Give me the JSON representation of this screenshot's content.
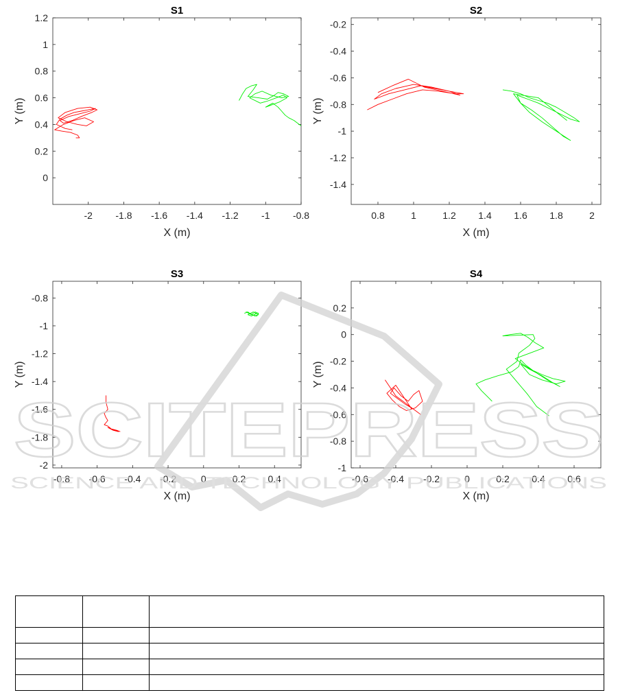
{
  "chart_data": [
    {
      "type": "line",
      "title": "S1",
      "xlabel": "X (m)",
      "ylabel": "Y (m)",
      "xlim": [
        -2.2,
        -0.8
      ],
      "ylim": [
        -0.2,
        1.2
      ],
      "xticks": [
        -2,
        -1.8,
        -1.6,
        -1.4,
        -1.2,
        -1,
        -0.8
      ],
      "yticks": [
        0,
        0.2,
        0.4,
        0.6,
        0.8,
        1,
        1.2
      ],
      "grid": false,
      "series": [
        {
          "color": "#ff0000",
          "x": [
            -2.09,
            -2.13,
            -2.18,
            -2.16,
            -2.12,
            -2.08,
            -2.04,
            -2.0,
            -1.96,
            -1.99,
            -2.05,
            -2.11,
            -2.16,
            -2.14,
            -2.09,
            -2.04,
            -1.98,
            -1.95,
            -1.99,
            -2.06,
            -2.13,
            -2.17,
            -2.12,
            -2.06,
            -2.01,
            -1.97,
            -2.02,
            -2.08,
            -2.14,
            -2.19,
            -2.15,
            -2.1,
            -2.06,
            -2.05,
            -2.07
          ],
          "y": [
            0.36,
            0.37,
            0.4,
            0.44,
            0.47,
            0.49,
            0.5,
            0.51,
            0.52,
            0.5,
            0.48,
            0.46,
            0.43,
            0.41,
            0.43,
            0.46,
            0.49,
            0.51,
            0.53,
            0.52,
            0.49,
            0.45,
            0.42,
            0.4,
            0.39,
            0.42,
            0.45,
            0.43,
            0.4,
            0.36,
            0.35,
            0.34,
            0.32,
            0.3,
            0.3
          ]
        },
        {
          "color": "#00ee00",
          "x": [
            -1.15,
            -1.13,
            -1.11,
            -1.08,
            -1.05,
            -1.07,
            -1.1,
            -1.04,
            -0.99,
            -0.95,
            -0.93,
            -0.9,
            -0.87,
            -0.91,
            -0.97,
            -1.02,
            -1.06,
            -1.09,
            -1.03,
            -0.98,
            -0.94,
            -0.9,
            -0.88,
            -0.92,
            -0.96,
            -1.0,
            -0.96,
            -0.93,
            -0.91,
            -0.89,
            -0.87,
            -0.84,
            -0.82,
            -0.8
          ],
          "y": [
            0.58,
            0.63,
            0.67,
            0.69,
            0.7,
            0.66,
            0.61,
            0.6,
            0.59,
            0.62,
            0.64,
            0.63,
            0.61,
            0.6,
            0.62,
            0.65,
            0.63,
            0.6,
            0.56,
            0.58,
            0.6,
            0.62,
            0.6,
            0.57,
            0.55,
            0.53,
            0.56,
            0.53,
            0.5,
            0.47,
            0.45,
            0.43,
            0.41,
            0.39
          ]
        }
      ]
    },
    {
      "type": "line",
      "title": "S2",
      "xlabel": "X (m)",
      "ylabel": "Y (m)",
      "xlim": [
        0.65,
        2.05
      ],
      "ylim": [
        -1.55,
        -0.15
      ],
      "xticks": [
        0.8,
        1,
        1.2,
        1.4,
        1.6,
        1.8,
        2
      ],
      "yticks": [
        -1.4,
        -1.2,
        -1,
        -0.8,
        -0.6,
        -0.4,
        -0.2
      ],
      "grid": false,
      "series": [
        {
          "color": "#ff0000",
          "x": [
            0.74,
            0.8,
            0.88,
            0.96,
            1.05,
            1.14,
            1.23,
            1.28,
            1.2,
            1.1,
            1.0,
            0.9,
            0.82,
            0.78,
            0.86,
            0.95,
            1.04,
            1.12,
            1.2,
            1.26,
            1.16,
            1.06,
            0.97,
            0.88,
            0.8
          ],
          "y": [
            -0.84,
            -0.8,
            -0.76,
            -0.72,
            -0.69,
            -0.7,
            -0.72,
            -0.72,
            -0.7,
            -0.67,
            -0.65,
            -0.68,
            -0.72,
            -0.76,
            -0.72,
            -0.69,
            -0.66,
            -0.68,
            -0.7,
            -0.73,
            -0.7,
            -0.67,
            -0.61,
            -0.66,
            -0.71
          ]
        },
        {
          "color": "#00ee00",
          "x": [
            1.5,
            1.55,
            1.6,
            1.65,
            1.7,
            1.75,
            1.8,
            1.85,
            1.9,
            1.93,
            1.88,
            1.82,
            1.76,
            1.7,
            1.64,
            1.58,
            1.6,
            1.66,
            1.72,
            1.78,
            1.84,
            1.88,
            1.8,
            1.72,
            1.65,
            1.6,
            1.56,
            1.7,
            1.86
          ],
          "y": [
            -0.69,
            -0.7,
            -0.72,
            -0.75,
            -0.77,
            -0.79,
            -0.82,
            -0.86,
            -0.9,
            -0.93,
            -0.91,
            -0.87,
            -0.83,
            -0.79,
            -0.76,
            -0.73,
            -0.79,
            -0.84,
            -0.9,
            -0.97,
            -1.04,
            -1.07,
            -1.0,
            -0.93,
            -0.86,
            -0.79,
            -0.72,
            -0.75,
            -0.92
          ]
        }
      ]
    },
    {
      "type": "line",
      "title": "S3",
      "xlabel": "X (m)",
      "ylabel": "Y (m)",
      "xlim": [
        -0.85,
        0.55
      ],
      "ylim": [
        -2.02,
        -0.68
      ],
      "xticks": [
        -0.8,
        -0.6,
        -0.4,
        -0.2,
        0,
        0.2,
        0.4
      ],
      "yticks": [
        -2,
        -1.8,
        -1.6,
        -1.4,
        -1.2,
        -1,
        -0.8
      ],
      "grid": false,
      "series": [
        {
          "color": "#ff0000",
          "x": [
            -0.55,
            -0.55,
            -0.54,
            -0.56,
            -0.55,
            -0.54,
            -0.56,
            -0.54,
            -0.52,
            -0.5,
            -0.48,
            -0.51,
            -0.54,
            -0.52,
            -0.49,
            -0.47
          ],
          "y": [
            -1.5,
            -1.55,
            -1.6,
            -1.63,
            -1.66,
            -1.68,
            -1.71,
            -1.72,
            -1.74,
            -1.75,
            -1.76,
            -1.75,
            -1.73,
            -1.74,
            -1.75,
            -1.76
          ]
        },
        {
          "color": "#00ee00",
          "x": [
            0.23,
            0.25,
            0.27,
            0.29,
            0.31,
            0.3,
            0.27,
            0.24,
            0.26,
            0.29,
            0.31,
            0.28,
            0.25,
            0.27,
            0.3
          ],
          "y": [
            -0.91,
            -0.9,
            -0.92,
            -0.9,
            -0.91,
            -0.93,
            -0.92,
            -0.9,
            -0.91,
            -0.93,
            -0.92,
            -0.9,
            -0.92,
            -0.93,
            -0.91
          ]
        }
      ]
    },
    {
      "type": "line",
      "title": "S4",
      "xlabel": "X (m)",
      "ylabel": "Y (m)",
      "xlim": [
        -0.65,
        0.75
      ],
      "ylim": [
        -1.0,
        0.4
      ],
      "xticks": [
        -0.6,
        -0.4,
        -0.2,
        0,
        0.2,
        0.4,
        0.6
      ],
      "yticks": [
        -1,
        -0.8,
        -0.6,
        -0.4,
        -0.2,
        0,
        0.2
      ],
      "grid": false,
      "series": [
        {
          "color": "#ff0000",
          "x": [
            -0.46,
            -0.44,
            -0.42,
            -0.4,
            -0.37,
            -0.34,
            -0.31,
            -0.28,
            -0.26,
            -0.3,
            -0.35,
            -0.39,
            -0.43,
            -0.41,
            -0.37,
            -0.33,
            -0.3,
            -0.27,
            -0.25,
            -0.29,
            -0.34,
            -0.38,
            -0.42,
            -0.45,
            -0.4,
            -0.35,
            -0.31
          ],
          "y": [
            -0.34,
            -0.38,
            -0.42,
            -0.46,
            -0.49,
            -0.52,
            -0.55,
            -0.58,
            -0.6,
            -0.56,
            -0.52,
            -0.48,
            -0.44,
            -0.4,
            -0.46,
            -0.5,
            -0.45,
            -0.42,
            -0.5,
            -0.55,
            -0.57,
            -0.54,
            -0.49,
            -0.44,
            -0.38,
            -0.48,
            -0.56
          ]
        },
        {
          "color": "#00ee00",
          "x": [
            0.14,
            0.11,
            0.08,
            0.05,
            0.1,
            0.17,
            0.25,
            0.29,
            0.3,
            0.33,
            0.37,
            0.42,
            0.48,
            0.55,
            0.5,
            0.42,
            0.35,
            0.3,
            0.35,
            0.42,
            0.48,
            0.52,
            0.45,
            0.38,
            0.32,
            0.27,
            0.35,
            0.43,
            0.38,
            0.34,
            0.3,
            0.24,
            0.2,
            0.37,
            0.38,
            0.35,
            0.29,
            0.28,
            0.22,
            0.34,
            0.39,
            0.46
          ],
          "y": [
            -0.5,
            -0.46,
            -0.42,
            -0.37,
            -0.34,
            -0.31,
            -0.28,
            -0.24,
            -0.19,
            -0.23,
            -0.27,
            -0.3,
            -0.33,
            -0.35,
            -0.37,
            -0.34,
            -0.3,
            -0.22,
            -0.26,
            -0.31,
            -0.36,
            -0.39,
            -0.34,
            -0.28,
            -0.23,
            -0.18,
            -0.14,
            -0.1,
            -0.06,
            -0.02,
            0.01,
            0.0,
            -0.01,
            0.0,
            -0.03,
            -0.08,
            -0.14,
            -0.2,
            -0.26,
            -0.45,
            -0.54,
            -0.61
          ]
        }
      ]
    }
  ],
  "table": {
    "columns": [
      "",
      "",
      ""
    ],
    "rows": [
      [
        "",
        "",
        ""
      ],
      [
        "",
        "",
        ""
      ],
      [
        "",
        "",
        ""
      ],
      [
        "",
        "",
        ""
      ]
    ]
  },
  "watermark": {
    "text": "SCITEPRESS",
    "subtext": "SCIENCE AND TECHNOLOGY PUBLICATIONS"
  }
}
